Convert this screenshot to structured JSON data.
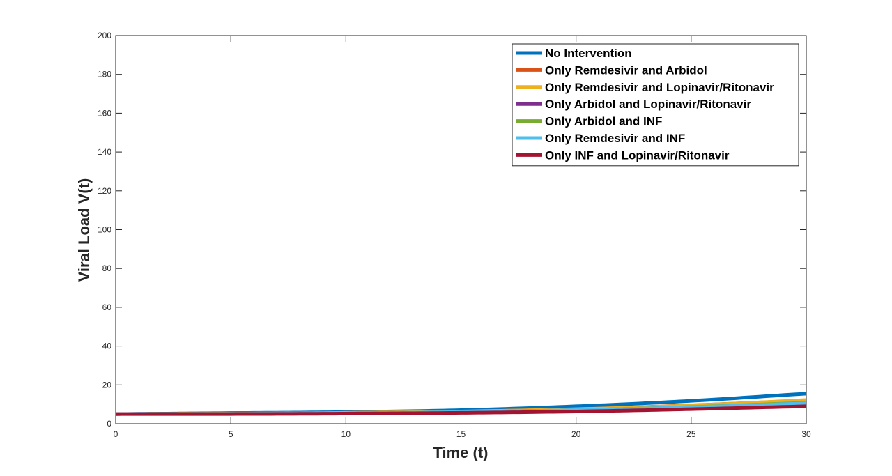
{
  "chart_data": {
    "type": "line",
    "xlabel": "Time (t)",
    "ylabel": "Viral Load V(t)",
    "xlim": [
      0,
      30
    ],
    "ylim": [
      0,
      200
    ],
    "xticks": [
      "0",
      "5",
      "10",
      "15",
      "20",
      "25",
      "30"
    ],
    "yticks": [
      "0",
      "20",
      "40",
      "60",
      "80",
      "100",
      "120",
      "140",
      "160",
      "180",
      "200"
    ],
    "grid": false,
    "legend_position": "top-right",
    "x": [
      0,
      5,
      10,
      15,
      20,
      25,
      30
    ],
    "series": [
      {
        "name": "No Intervention",
        "color": "#0072BD",
        "values": [
          5,
          5.5,
          6.0,
          7.0,
          9.0,
          11.8,
          15.5
        ]
      },
      {
        "name": "Only Remdesivir and Arbidol",
        "color": "#D95319",
        "values": [
          5,
          5.2,
          5.6,
          6.3,
          7.5,
          9.5,
          12.0
        ]
      },
      {
        "name": "Only Remdesivir and Lopinavir/Ritonavir",
        "color": "#EDB120",
        "values": [
          5,
          5.2,
          5.6,
          6.3,
          7.5,
          9.4,
          12.2
        ]
      },
      {
        "name": "Only Arbidol and Lopinavir/Ritonavir",
        "color": "#7E2F8E",
        "values": [
          5,
          5.1,
          5.4,
          6.0,
          7.0,
          8.5,
          10.5
        ]
      },
      {
        "name": "Only Arbidol and INF",
        "color": "#77AC30",
        "values": [
          5,
          5.1,
          5.4,
          6.0,
          7.0,
          8.6,
          10.8
        ]
      },
      {
        "name": "Only Remdesivir and INF",
        "color": "#4DBEEE",
        "values": [
          5,
          5.1,
          5.4,
          6.0,
          7.0,
          8.5,
          10.5
        ]
      },
      {
        "name": "Only INF and Lopinavir/Ritonavir",
        "color": "#A2142F",
        "values": [
          5,
          5.0,
          5.2,
          5.6,
          6.3,
          7.5,
          9.0
        ]
      }
    ]
  }
}
